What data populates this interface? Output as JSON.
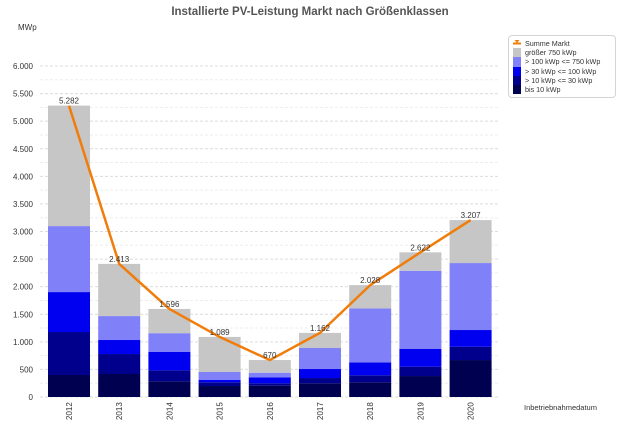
{
  "chart_data": {
    "type": "bar",
    "stacked": true,
    "title": "Installierte PV-Leistung Markt nach Größenklassen",
    "ylabel": "MWp",
    "xlabel": "Inbetriebnahmedatum",
    "ylim": [
      0,
      6000
    ],
    "yticks": [
      0,
      500,
      1000,
      1500,
      2000,
      2500,
      3000,
      3500,
      4000,
      4500,
      5000,
      5500,
      6000
    ],
    "ytick_labels": [
      "0",
      "500",
      "1.000",
      "1.500",
      "2.000",
      "2.500",
      "3.000",
      "3.500",
      "4.000",
      "4.500",
      "5.000",
      "5.500",
      "6.000"
    ],
    "grid": true,
    "legend_position": "top-right",
    "categories": [
      "2012",
      "2013",
      "2014",
      "2015",
      "2016",
      "2017",
      "2018",
      "2019",
      "2020"
    ],
    "series": [
      {
        "name": "bis 10 kWp",
        "color": "#000050",
        "values": [
          399,
          417,
          284,
          199,
          205,
          248,
          266,
          380,
          670
        ]
      },
      {
        "name": "> 10 kWp <= 30 kWp",
        "color": "#00008c",
        "values": [
          779,
          362,
          199,
          67,
          43,
          96,
          127,
          169,
          241
        ]
      },
      {
        "name": "> 30 kWp <= 100 kWp",
        "color": "#0000f0",
        "values": [
          724,
          254,
          337,
          42,
          109,
          163,
          235,
          321,
          303
        ]
      },
      {
        "name": "> 100 kWp <= 750 kWp",
        "color": "#8080f8",
        "values": [
          1196,
          434,
          337,
          145,
          83,
          381,
          978,
          1418,
          1214
        ]
      },
      {
        "name": "größer 750 kWp",
        "color": "#c6c6c6",
        "values": [
          2184,
          946,
          439,
          636,
          230,
          274,
          422,
          334,
          779
        ]
      }
    ],
    "line_series": {
      "name": "Summe Markt",
      "color": "#f07d0a",
      "values": [
        5282,
        2413,
        1596,
        1089,
        670,
        1162,
        2028,
        2622,
        3207
      ],
      "labels": [
        "5.282",
        "2.413",
        "1.596",
        "1.089",
        "670",
        "1.162",
        "2.028",
        "2.622",
        "3.207"
      ]
    }
  },
  "legend": {
    "items": [
      {
        "label": "Summe Markt",
        "color": "#f07d0a",
        "kind": "line"
      },
      {
        "label": "größer 750 kWp",
        "color": "#c6c6c6",
        "kind": "box"
      },
      {
        "label": "> 100 kWp <= 750 kWp",
        "color": "#8080f8",
        "kind": "box"
      },
      {
        "label": "> 30 kWp <= 100 kWp",
        "color": "#0000f0",
        "kind": "box"
      },
      {
        "label": "> 10 kWp <= 30 kWp",
        "color": "#00008c",
        "kind": "box"
      },
      {
        "label": "bis 10 kWp",
        "color": "#000050",
        "kind": "box"
      }
    ]
  }
}
